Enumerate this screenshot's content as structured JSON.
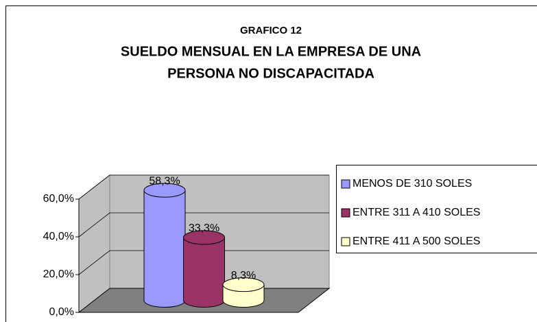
{
  "chart_data": {
    "type": "bar3d_cylinder",
    "title": "GRAFICO 12",
    "subtitle": [
      "SUELDO MENSUAL EN LA EMPRESA DE UNA",
      "PERSONA NO DISCAPACITADA"
    ],
    "series": [
      {
        "name": "MENOS DE 310 SOLES",
        "color": "#9999ff",
        "values": [
          58.3
        ],
        "value_labels": [
          "58,3%"
        ]
      },
      {
        "name": "ENTRE 311 A 410 SOLES",
        "color": "#993366",
        "values": [
          33.3
        ],
        "value_labels": [
          "33,3%"
        ]
      },
      {
        "name": "ENTRE 411 A 500 SOLES",
        "color": "#ffffcc",
        "values": [
          8.3
        ],
        "value_labels": [
          "8,3%"
        ]
      }
    ],
    "ylim": [
      0,
      60
    ],
    "yticks": [
      {
        "value": 0,
        "label": "0,0%"
      },
      {
        "value": 20,
        "label": "20,0%"
      },
      {
        "value": 40,
        "label": "40,0%"
      },
      {
        "value": 60,
        "label": "60,0%"
      }
    ],
    "grid": true,
    "legend": "right"
  }
}
